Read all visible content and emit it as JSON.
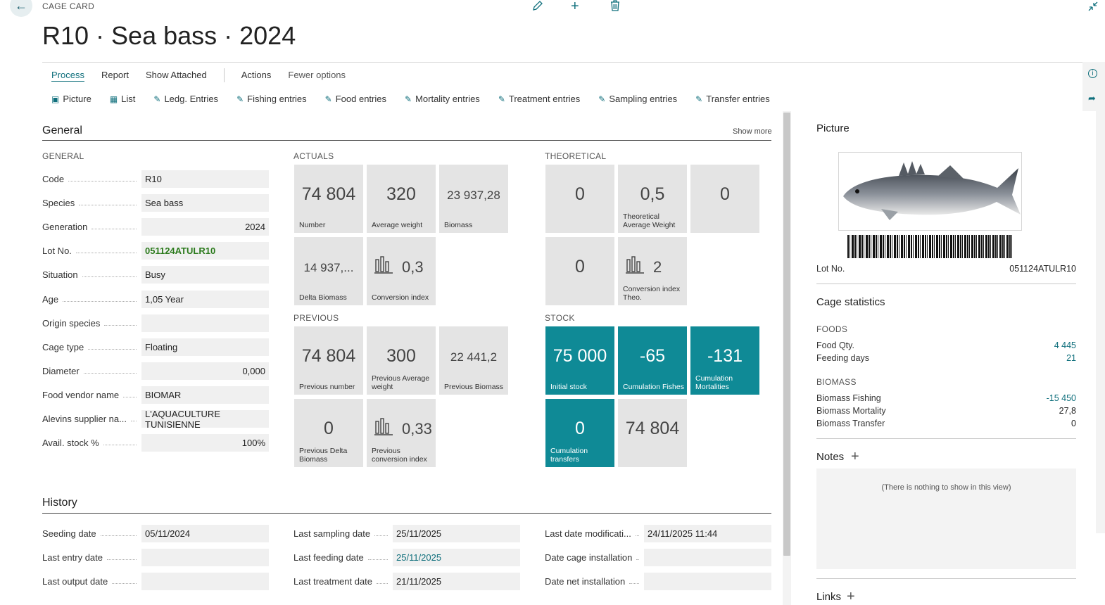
{
  "header": {
    "crumb": "CAGE CARD",
    "title": "R10 · Sea bass · 2024"
  },
  "menu": [
    "Process",
    "Report",
    "Show Attached",
    "Actions",
    "Fewer options"
  ],
  "tools": [
    {
      "icon": "picture-icon",
      "label": "Picture"
    },
    {
      "icon": "list-icon",
      "label": "List"
    },
    {
      "icon": "edit-list-icon",
      "label": "Ledg. Entries"
    },
    {
      "icon": "edit-list-icon",
      "label": "Fishing entries"
    },
    {
      "icon": "edit-list-icon",
      "label": "Food entries"
    },
    {
      "icon": "edit-list-icon",
      "label": "Mortality entries"
    },
    {
      "icon": "edit-list-icon",
      "label": "Treatment entries"
    },
    {
      "icon": "edit-list-icon",
      "label": "Sampling entries"
    },
    {
      "icon": "edit-list-icon",
      "label": "Transfer entries"
    }
  ],
  "general": {
    "title": "General",
    "show_more": "Show more",
    "group_general": "GENERAL",
    "group_actuals": "ACTUALS",
    "group_theoretical": "THEORETICAL",
    "group_previous": "PREVIOUS",
    "group_stock": "STOCK",
    "fields": [
      {
        "label": "Code",
        "value": "R10",
        "align": "l"
      },
      {
        "label": "Species",
        "value": "Sea bass",
        "align": "l"
      },
      {
        "label": "Generation",
        "value": "2024",
        "align": "r"
      },
      {
        "label": "Lot No.",
        "value": "051124ATULR10",
        "align": "l",
        "style": "bold"
      },
      {
        "label": "Situation",
        "value": "Busy",
        "align": "l"
      },
      {
        "label": "Age",
        "value": "1,05 Year",
        "align": "l"
      },
      {
        "label": "Origin species",
        "value": "",
        "align": "l"
      },
      {
        "label": "Cage type",
        "value": "Floating",
        "align": "l"
      },
      {
        "label": "Diameter",
        "value": "0,000",
        "align": "r"
      },
      {
        "label": "Food vendor name",
        "value": "BIOMAR",
        "align": "l"
      },
      {
        "label": "Alevins supplier na...",
        "value": "L'AQUACULTURE TUNISIENNE",
        "align": "l"
      },
      {
        "label": "Avail. stock %",
        "value": "100%",
        "align": "r"
      }
    ],
    "actuals": [
      {
        "value": "74 804",
        "label": "Number"
      },
      {
        "value": "320",
        "label": "Average weight"
      },
      {
        "value": "23 937,28",
        "label": "Biomass",
        "small": true
      },
      {
        "value": "14 937,...",
        "label": "Delta Biomass",
        "small": true
      },
      {
        "value": "0,3",
        "label": "Conversion index",
        "chart": true
      }
    ],
    "theoretical": [
      {
        "value": "0",
        "label": ""
      },
      {
        "value": "0,5",
        "label": "Theoretical Average Weight"
      },
      {
        "value": "0",
        "label": ""
      },
      {
        "value": "0",
        "label": ""
      },
      {
        "value": "2",
        "label": "Conversion index Theo.",
        "chart": true
      }
    ],
    "previous": [
      {
        "value": "74 804",
        "label": "Previous number"
      },
      {
        "value": "300",
        "label": "Previous Average weight"
      },
      {
        "value": "22 441,2",
        "label": "Previous Biomass",
        "small": true
      },
      {
        "value": "0",
        "label": "Previous Delta Biomass"
      },
      {
        "value": "0,33",
        "label": "Previous conversion index",
        "chart": true
      }
    ],
    "stock": [
      {
        "value": "75 000",
        "label": "Initial stock",
        "teal": true
      },
      {
        "value": "-65",
        "label": "Cumulation Fishes",
        "teal": true
      },
      {
        "value": "-131",
        "label": "Cumulation Mortalities",
        "teal": true
      },
      {
        "value": "0",
        "label": "Cumulation transfers",
        "teal": true
      },
      {
        "value": "74 804",
        "label": ""
      }
    ]
  },
  "history": {
    "title": "History",
    "col1": [
      {
        "label": "Seeding date",
        "value": "05/11/2024"
      },
      {
        "label": "Last entry date",
        "value": ""
      },
      {
        "label": "Last output date",
        "value": ""
      }
    ],
    "col2": [
      {
        "label": "Last sampling date",
        "value": "25/11/2025"
      },
      {
        "label": "Last feeding date",
        "value": "25/11/2025",
        "style": "link"
      },
      {
        "label": "Last treatment date",
        "value": "21/11/2025"
      }
    ],
    "col3": [
      {
        "label": "Last date modificati...",
        "value": "24/11/2025 11:44"
      },
      {
        "label": "Date cage installation",
        "value": ""
      },
      {
        "label": "Date net installation",
        "value": ""
      }
    ]
  },
  "right_panel": {
    "picture_title": "Picture",
    "lot_label": "Lot No.",
    "lot_value": "051124ATULR10",
    "stats_title": "Cage statistics",
    "foods_group": "FOODS",
    "foods": [
      {
        "label": "Food Qty.",
        "value": "4 445"
      },
      {
        "label": "Feeding days",
        "value": "21"
      }
    ],
    "biomass_group": "BIOMASS",
    "biomass": [
      {
        "label": "Biomass Fishing",
        "value": "-15 450",
        "link": true
      },
      {
        "label": "Biomass Mortality",
        "value": "27,8",
        "link": false
      },
      {
        "label": "Biomass Transfer",
        "value": "0",
        "link": false
      }
    ],
    "notes_title": "Notes",
    "notes_empty": "(There is nothing to show in this view)",
    "links_title": "Links"
  },
  "colors": {
    "accent": "#0f6f7c",
    "tile_teal": "#0f8a96",
    "tile_grey": "#e4e4e4",
    "lot_green": "#2b7a1c"
  }
}
